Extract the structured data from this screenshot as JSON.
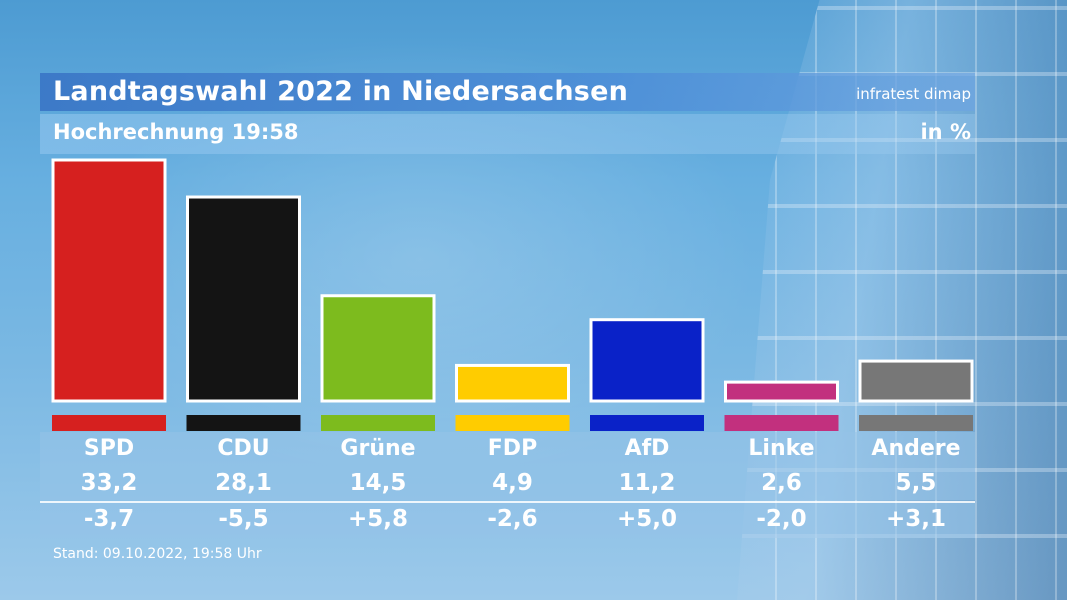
{
  "header": {
    "title": "Landtagswahl 2022 in Niedersachsen",
    "source": "infratest dimap",
    "subtitle": "Hochrechnung 19:58",
    "unit": "in %"
  },
  "footer": {
    "stand": "Stand: 09.10.2022, 19:58 Uhr"
  },
  "chart_data": {
    "type": "bar",
    "title": "Landtagswahl 2022 in Niedersachsen",
    "subtitle": "Hochrechnung 19:58",
    "ylabel": "in %",
    "ylim": [
      0,
      33.2
    ],
    "categories": [
      "SPD",
      "CDU",
      "Grüne",
      "FDP",
      "AfD",
      "Linke",
      "Andere"
    ],
    "values": [
      33.2,
      28.1,
      14.5,
      4.9,
      11.2,
      2.6,
      5.5
    ],
    "value_labels": [
      "33,2",
      "28,1",
      "14,5",
      "4,9",
      "11,2",
      "2,6",
      "5,5"
    ],
    "diff_labels": [
      "-3,7",
      "-5,5",
      "+5,8",
      "-2,6",
      "+5,0",
      "-2,0",
      "+3,1"
    ],
    "colors": [
      "#d6201f",
      "#141414",
      "#7dbb1e",
      "#ffcc00",
      "#0a22c8",
      "#c2307e",
      "#777777"
    ]
  }
}
